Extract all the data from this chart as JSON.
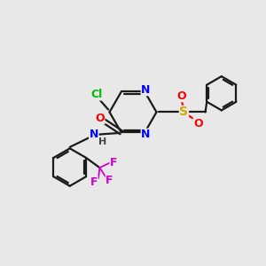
{
  "bg_color": "#e8e8e8",
  "bond_color": "#1a1a1a",
  "atom_colors": {
    "N": "#0000ff",
    "O": "#ff0000",
    "Cl": "#00bb00",
    "S": "#ccaa00",
    "F": "#cc00cc",
    "H": "#444444",
    "C": "#1a1a1a"
  }
}
